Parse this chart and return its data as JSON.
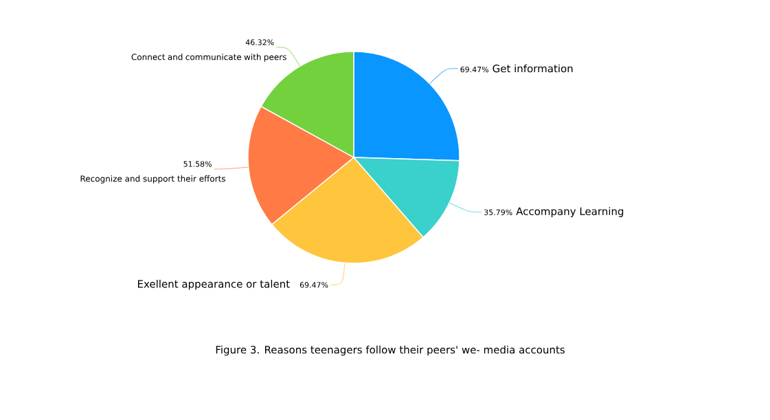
{
  "chart_data": {
    "type": "pie",
    "title": "Figure 3. Reasons teenagers follow their peers' we- media accounts",
    "categories": [
      "Get information",
      "Accompany Learning",
      "Exellent appearance or talent",
      "Recognize and support their efforts",
      "Connect and communicate with peers"
    ],
    "values": [
      69.47,
      35.79,
      69.47,
      51.58,
      46.32
    ],
    "value_labels": [
      "69.47%",
      "35.79%",
      "69.47%",
      "51.58%",
      "46.32%"
    ],
    "colors": [
      "#0a96ff",
      "#3ad0cc",
      "#ffc53d",
      "#ff7a45",
      "#73d13d"
    ]
  }
}
